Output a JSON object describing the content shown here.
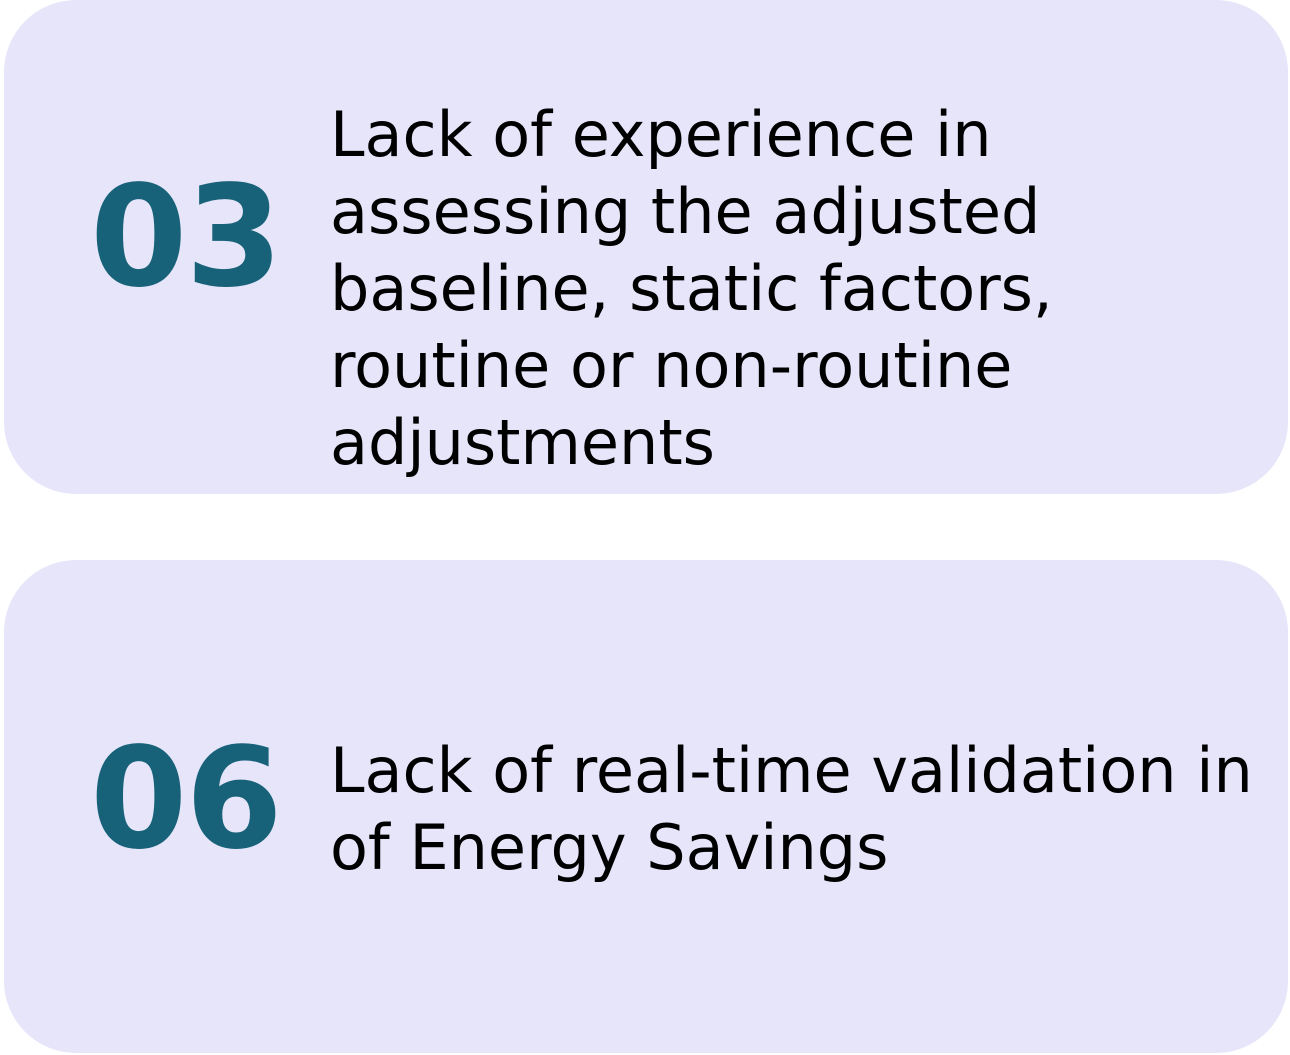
{
  "items": [
    {
      "number": "03",
      "text": "Lack of experience in assessing the adjusted baseline, static factors, routine or non-routine adjustments"
    },
    {
      "number": "06",
      "text": "Lack of real-time validation in of Energy Savings"
    }
  ],
  "colors": {
    "card_background": "#e6e5fa",
    "number": "#176279",
    "text": "#000000"
  }
}
